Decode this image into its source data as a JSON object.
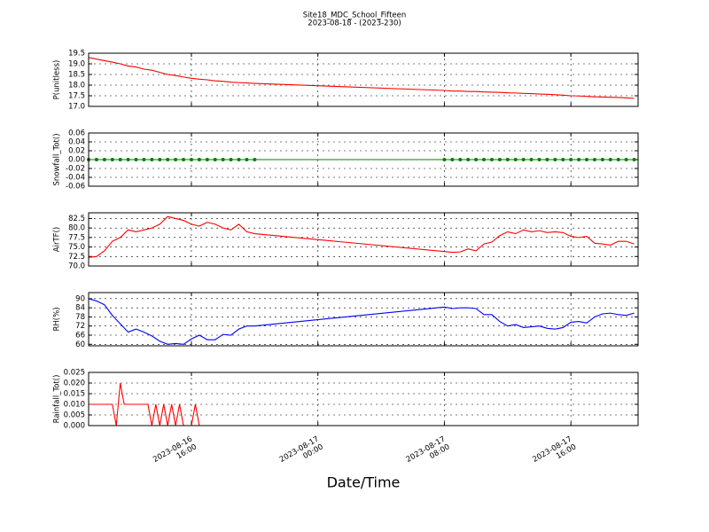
{
  "title": "Site18_MDC_School_Fifteen",
  "subtitle": "2023-08-18 - (2023-230)",
  "grid": true,
  "x_axis": {
    "label": "Date/Time",
    "xlim": [
      "2023-08-16 09:30",
      "2023-08-17 20:15"
    ],
    "xticks": [
      {
        "value": "2023-08-16 16:00",
        "label": [
          "2023-08-16",
          "16:00"
        ]
      },
      {
        "value": "2023-08-17 00:00",
        "label": [
          "2023-08-17",
          "00:00"
        ]
      },
      {
        "value": "2023-08-17 08:00",
        "label": [
          "2023-08-17",
          "08:00"
        ]
      },
      {
        "value": "2023-08-17 16:00",
        "label": [
          "2023-08-17",
          "16:00"
        ]
      }
    ]
  },
  "chart_data": [
    {
      "type": "line",
      "ylabel": "P(unitless)",
      "ylim": [
        17.0,
        19.5
      ],
      "yticks": [
        {
          "value": 17.0,
          "label": "17.0"
        },
        17.5,
        {
          "value": 18.0,
          "label": "18.0"
        },
        18.5,
        {
          "value": 19.0,
          "label": "19.0"
        },
        19.5
      ],
      "x": [
        "2023-08-16 09:30",
        "2023-08-16 10:00",
        "2023-08-16 10:30",
        "2023-08-16 11:00",
        "2023-08-16 11:30",
        "2023-08-16 12:00",
        "2023-08-16 12:30",
        "2023-08-16 13:00",
        "2023-08-16 13:30",
        "2023-08-16 14:00",
        "2023-08-16 14:30",
        "2023-08-16 15:00",
        "2023-08-16 15:30",
        "2023-08-16 16:00",
        "2023-08-16 16:30",
        "2023-08-16 17:00",
        "2023-08-16 17:30",
        "2023-08-16 18:00",
        "2023-08-16 18:30",
        "2023-08-16 19:00",
        "2023-08-16 19:30",
        "2023-08-16 20:00",
        "2023-08-17 08:00",
        "2023-08-17 08:30",
        "2023-08-17 09:00",
        "2023-08-17 09:30",
        "2023-08-17 10:00",
        "2023-08-17 10:30",
        "2023-08-17 11:00",
        "2023-08-17 11:30",
        "2023-08-17 12:00",
        "2023-08-17 12:30",
        "2023-08-17 13:00",
        "2023-08-17 13:30",
        "2023-08-17 14:00",
        "2023-08-17 14:30",
        "2023-08-17 15:00",
        "2023-08-17 15:30",
        "2023-08-17 16:00",
        "2023-08-17 16:30",
        "2023-08-17 17:00",
        "2023-08-17 17:30",
        "2023-08-17 18:00",
        "2023-08-17 18:30",
        "2023-08-17 19:00",
        "2023-08-17 19:30",
        "2023-08-17 20:00"
      ],
      "series": [
        {
          "color": "#ff0000",
          "values": [
            19.3,
            19.22,
            19.15,
            19.08,
            19.0,
            18.9,
            18.85,
            18.75,
            18.7,
            18.6,
            18.5,
            18.45,
            18.38,
            18.32,
            18.28,
            18.25,
            18.2,
            18.18,
            18.14,
            18.12,
            18.1,
            18.08,
            17.75,
            17.72,
            17.72,
            17.7,
            17.7,
            17.68,
            17.67,
            17.66,
            17.64,
            17.63,
            17.61,
            17.6,
            17.58,
            17.57,
            17.55,
            17.53,
            17.5,
            17.49,
            17.47,
            17.45,
            17.44,
            17.43,
            17.42,
            17.4,
            17.38
          ]
        }
      ]
    },
    {
      "type": "line",
      "ylabel": "Snowfall_Tot()",
      "ylim": [
        -0.06,
        0.06
      ],
      "yticks": [
        -0.06,
        -0.04,
        -0.02,
        {
          "value": 0,
          "label": "0.00"
        },
        0.02,
        0.04,
        0.06
      ],
      "x": [
        "2023-08-16 09:30",
        "2023-08-16 10:00",
        "2023-08-16 10:30",
        "2023-08-16 11:00",
        "2023-08-16 11:30",
        "2023-08-16 12:00",
        "2023-08-16 12:30",
        "2023-08-16 13:00",
        "2023-08-16 13:30",
        "2023-08-16 14:00",
        "2023-08-16 14:30",
        "2023-08-16 15:00",
        "2023-08-16 15:30",
        "2023-08-16 16:00",
        "2023-08-16 16:30",
        "2023-08-16 17:00",
        "2023-08-16 17:30",
        "2023-08-16 18:00",
        "2023-08-16 18:30",
        "2023-08-16 19:00",
        "2023-08-16 19:30",
        "2023-08-16 20:00",
        "2023-08-17 08:00",
        "2023-08-17 08:30",
        "2023-08-17 09:00",
        "2023-08-17 09:30",
        "2023-08-17 10:00",
        "2023-08-17 10:30",
        "2023-08-17 11:00",
        "2023-08-17 11:30",
        "2023-08-17 12:00",
        "2023-08-17 12:30",
        "2023-08-17 13:00",
        "2023-08-17 13:30",
        "2023-08-17 14:00",
        "2023-08-17 14:30",
        "2023-08-17 15:00",
        "2023-08-17 15:30",
        "2023-08-17 16:00",
        "2023-08-17 16:30",
        "2023-08-17 17:00",
        "2023-08-17 17:30",
        "2023-08-17 18:00",
        "2023-08-17 18:30",
        "2023-08-17 19:00",
        "2023-08-17 19:30",
        "2023-08-17 20:00"
      ],
      "series": [
        {
          "color": "#008000",
          "marker": true,
          "values": [
            0,
            0,
            0,
            0,
            0,
            0,
            0,
            0,
            0,
            0,
            0,
            0,
            0,
            0,
            0,
            0,
            0,
            0,
            0,
            0,
            0,
            0,
            0,
            0,
            0,
            0,
            0,
            0,
            0,
            0,
            0,
            0,
            0,
            0,
            0,
            0,
            0,
            0,
            0,
            0,
            0,
            0,
            0,
            0,
            0,
            0,
            0
          ]
        }
      ]
    },
    {
      "type": "line",
      "ylabel": "AirTF()",
      "ylim": [
        70,
        84
      ],
      "yticks": [
        {
          "value": 70,
          "label": "70.0"
        },
        72.5,
        {
          "value": 75,
          "label": "75.0"
        },
        77.5,
        {
          "value": 80,
          "label": "80.0"
        },
        82.5
      ],
      "x": [
        "2023-08-16 09:30",
        "2023-08-16 10:00",
        "2023-08-16 10:30",
        "2023-08-16 11:00",
        "2023-08-16 11:30",
        "2023-08-16 12:00",
        "2023-08-16 12:30",
        "2023-08-16 13:00",
        "2023-08-16 13:30",
        "2023-08-16 14:00",
        "2023-08-16 14:30",
        "2023-08-16 15:00",
        "2023-08-16 15:30",
        "2023-08-16 16:00",
        "2023-08-16 16:30",
        "2023-08-16 17:00",
        "2023-08-16 17:30",
        "2023-08-16 18:00",
        "2023-08-16 18:30",
        "2023-08-16 19:00",
        "2023-08-16 19:30",
        "2023-08-16 20:00",
        "2023-08-17 08:00",
        "2023-08-17 08:30",
        "2023-08-17 09:00",
        "2023-08-17 09:30",
        "2023-08-17 10:00",
        "2023-08-17 10:30",
        "2023-08-17 11:00",
        "2023-08-17 11:30",
        "2023-08-17 12:00",
        "2023-08-17 12:30",
        "2023-08-17 13:00",
        "2023-08-17 13:30",
        "2023-08-17 14:00",
        "2023-08-17 14:30",
        "2023-08-17 15:00",
        "2023-08-17 15:30",
        "2023-08-17 16:00",
        "2023-08-17 16:30",
        "2023-08-17 17:00",
        "2023-08-17 17:30",
        "2023-08-17 18:00",
        "2023-08-17 18:30",
        "2023-08-17 19:00",
        "2023-08-17 19:30",
        "2023-08-17 20:00"
      ],
      "series": [
        {
          "color": "#ff0000",
          "values": [
            72.3,
            72.5,
            74,
            76.5,
            77.5,
            79.5,
            79,
            79.5,
            80,
            81,
            83,
            82.5,
            82,
            81,
            80.5,
            81.5,
            81,
            80,
            79.5,
            81,
            79,
            78.5,
            73.8,
            73.6,
            73.7,
            74.5,
            74,
            75.8,
            76.3,
            78,
            79,
            78.5,
            79.5,
            79,
            79.3,
            78.8,
            79,
            78.8,
            77.8,
            77.5,
            77.8,
            76,
            75.8,
            75.5,
            76.5,
            76.5,
            75.8
          ]
        }
      ]
    },
    {
      "type": "line",
      "ylabel": "RH(%)",
      "ylim": [
        59,
        94
      ],
      "yticks": [
        60,
        66,
        72,
        78,
        84,
        90
      ],
      "x": [
        "2023-08-16 09:30",
        "2023-08-16 10:00",
        "2023-08-16 10:30",
        "2023-08-16 11:00",
        "2023-08-16 11:30",
        "2023-08-16 12:00",
        "2023-08-16 12:30",
        "2023-08-16 13:00",
        "2023-08-16 13:30",
        "2023-08-16 14:00",
        "2023-08-16 14:30",
        "2023-08-16 15:00",
        "2023-08-16 15:30",
        "2023-08-16 16:00",
        "2023-08-16 16:30",
        "2023-08-16 17:00",
        "2023-08-16 17:30",
        "2023-08-16 18:00",
        "2023-08-16 18:30",
        "2023-08-16 19:00",
        "2023-08-16 19:30",
        "2023-08-16 20:00",
        "2023-08-17 08:00",
        "2023-08-17 08:30",
        "2023-08-17 09:00",
        "2023-08-17 09:30",
        "2023-08-17 10:00",
        "2023-08-17 10:30",
        "2023-08-17 11:00",
        "2023-08-17 11:30",
        "2023-08-17 12:00",
        "2023-08-17 12:30",
        "2023-08-17 13:00",
        "2023-08-17 13:30",
        "2023-08-17 14:00",
        "2023-08-17 14:30",
        "2023-08-17 15:00",
        "2023-08-17 15:30",
        "2023-08-17 16:00",
        "2023-08-17 16:30",
        "2023-08-17 17:00",
        "2023-08-17 17:30",
        "2023-08-17 18:00",
        "2023-08-17 18:30",
        "2023-08-17 19:00",
        "2023-08-17 19:30",
        "2023-08-17 20:00"
      ],
      "series": [
        {
          "color": "#0000ff",
          "values": [
            90,
            88.5,
            86,
            79,
            73.5,
            68,
            70,
            68,
            65.5,
            62,
            60,
            60.5,
            60,
            63.5,
            66,
            63,
            63,
            66.5,
            66,
            70,
            72,
            72,
            84.5,
            83.5,
            84,
            84,
            83.5,
            79.5,
            79.5,
            75,
            72,
            73,
            71,
            71.5,
            72,
            70.5,
            70,
            71,
            74.5,
            75,
            74,
            78,
            80,
            80.5,
            79.5,
            79,
            80.5
          ]
        }
      ]
    },
    {
      "type": "line",
      "ylabel": "Rainfall_Tot()",
      "ylim": [
        0,
        0.025
      ],
      "yticks": [
        {
          "value": 0,
          "label": "0.000"
        },
        {
          "value": 0.005,
          "label": "0.005"
        },
        {
          "value": 0.01,
          "label": "0.010"
        },
        {
          "value": 0.015,
          "label": "0.015"
        },
        {
          "value": 0.02,
          "label": "0.020"
        },
        {
          "value": 0.025,
          "label": "0.025"
        }
      ],
      "x": [
        "2023-08-16 09:30",
        "2023-08-16 09:45",
        "2023-08-16 10:00",
        "2023-08-16 10:15",
        "2023-08-16 10:30",
        "2023-08-16 10:45",
        "2023-08-16 11:00",
        "2023-08-16 11:15",
        "2023-08-16 11:30",
        "2023-08-16 11:45",
        "2023-08-16 12:00",
        "2023-08-16 12:15",
        "2023-08-16 12:30",
        "2023-08-16 12:45",
        "2023-08-16 13:00",
        "2023-08-16 13:15",
        "2023-08-16 13:30",
        "2023-08-16 13:45",
        "2023-08-16 14:00",
        "2023-08-16 14:15",
        "2023-08-16 14:30",
        "2023-08-16 14:45",
        "2023-08-16 15:00",
        "2023-08-16 15:15",
        "2023-08-16 15:30",
        "2023-08-16 15:45",
        "2023-08-16 16:00",
        "2023-08-16 16:15",
        "2023-08-16 16:30",
        "2023-08-16 16:45",
        "2023-08-16 17:00",
        "2023-08-16 17:30",
        "2023-08-16 18:00",
        "2023-08-16 18:30",
        "2023-08-16 19:00",
        "2023-08-16 19:30",
        "2023-08-16 20:00",
        "2023-08-17 08:00",
        "2023-08-17 08:30",
        "2023-08-17 09:00",
        "2023-08-17 09:30",
        "2023-08-17 10:00",
        "2023-08-17 10:30",
        "2023-08-17 11:00",
        "2023-08-17 11:30",
        "2023-08-17 12:00",
        "2023-08-17 12:30",
        "2023-08-17 13:00",
        "2023-08-17 13:30",
        "2023-08-17 14:00",
        "2023-08-17 14:30",
        "2023-08-17 15:00",
        "2023-08-17 15:30",
        "2023-08-17 16:00",
        "2023-08-17 16:30",
        "2023-08-17 17:00",
        "2023-08-17 17:30",
        "2023-08-17 18:00",
        "2023-08-17 18:30",
        "2023-08-17 19:00",
        "2023-08-17 19:30",
        "2023-08-17 20:00"
      ],
      "series": [
        {
          "color": "#ff0000",
          "values": [
            0.01,
            0.01,
            0.01,
            0.01,
            0.01,
            0.01,
            0.01,
            0,
            0.02,
            0.01,
            0.01,
            0.01,
            0.01,
            0.01,
            0.01,
            0.01,
            0,
            0.01,
            0,
            0.01,
            0,
            0.01,
            0,
            0.01,
            0,
            0,
            0,
            0.01,
            0,
            0,
            0,
            0,
            0,
            0,
            0,
            0,
            0,
            0,
            0,
            0,
            0,
            0,
            0,
            0,
            0,
            0,
            0,
            0,
            0,
            0,
            0,
            0,
            0,
            0,
            0,
            0,
            0,
            0,
            0,
            0,
            0,
            0
          ]
        }
      ]
    }
  ]
}
